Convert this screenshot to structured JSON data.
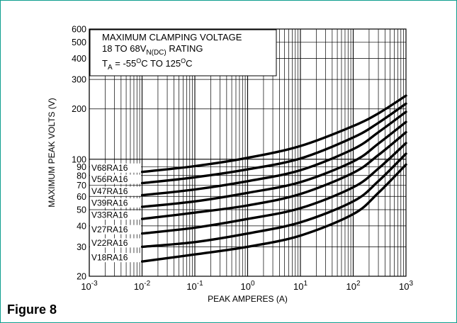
{
  "figure": {
    "caption": "Figure 8"
  },
  "colors": {
    "frame": "#0e9e8e",
    "curve": "#000000",
    "grid": "#000000",
    "background": "#ffffff"
  },
  "chart_data": {
    "type": "line",
    "title_lines": [
      "MAXIMUM CLAMPING VOLTAGE",
      "18 TO 68V",
      "N(DC)",
      " RATING",
      "T",
      "A",
      " = -55",
      "O",
      "C TO 125",
      "O",
      "C"
    ],
    "title": {
      "line1": "MAXIMUM CLAMPING VOLTAGE",
      "line2_main": "18 TO 68V",
      "line2_sub": "N(DC)",
      "line2_tail": " RATING",
      "line3_main": "T",
      "line3_sub": "A",
      "line3_mid": " = -55",
      "line3_sup1": "O",
      "line3_mid2": "C TO 125",
      "line3_sup2": "O",
      "line3_tail": "C"
    },
    "xlabel": "PEAK AMPERES (A)",
    "ylabel": "MAXIMUM PEAK VOLTS (V)",
    "xscale": "log",
    "yscale": "log",
    "xlim": [
      0.001,
      1000
    ],
    "ylim": [
      20,
      600
    ],
    "grid": true,
    "x_ticks": [
      {
        "base": "10",
        "exp": "-3"
      },
      {
        "base": "10",
        "exp": "-2"
      },
      {
        "base": "10",
        "exp": "-1"
      },
      {
        "base": "10",
        "exp": "0"
      },
      {
        "base": "10",
        "exp": "1"
      },
      {
        "base": "10",
        "exp": "2"
      },
      {
        "base": "10",
        "exp": "3"
      }
    ],
    "y_ticks": [
      "20",
      "30",
      "40",
      "50",
      "60",
      "70",
      "80",
      "90",
      "100",
      "200",
      "300",
      "400",
      "500",
      "600"
    ],
    "series": [
      {
        "name": "V68RA16",
        "x": [
          0.01,
          0.1,
          1,
          10,
          100,
          300,
          1000
        ],
        "y": [
          84,
          91,
          102,
          120,
          158,
          188,
          240
        ]
      },
      {
        "name": "V56RA16",
        "x": [
          0.01,
          0.1,
          1,
          10,
          100,
          300,
          1000
        ],
        "y": [
          72,
          78,
          87,
          101,
          135,
          165,
          215
        ]
      },
      {
        "name": "V47RA16",
        "x": [
          0.01,
          0.1,
          1,
          10,
          100,
          300,
          1000
        ],
        "y": [
          61,
          66,
          74,
          86,
          115,
          145,
          192
        ]
      },
      {
        "name": "V39RA16",
        "x": [
          0.01,
          0.1,
          1,
          10,
          100,
          300,
          1000
        ],
        "y": [
          52,
          56,
          63,
          73,
          97,
          124,
          167
        ]
      },
      {
        "name": "V33RA16",
        "x": [
          0.01,
          0.1,
          1,
          10,
          100,
          300,
          1000
        ],
        "y": [
          44,
          48,
          53,
          62,
          83,
          106,
          145
        ]
      },
      {
        "name": "V27RA16",
        "x": [
          0.01,
          0.1,
          1,
          10,
          100,
          300,
          1000
        ],
        "y": [
          36,
          39,
          44,
          51,
          68,
          88,
          125
        ]
      },
      {
        "name": "V22RA16",
        "x": [
          0.01,
          0.1,
          1,
          10,
          100,
          300,
          1000
        ],
        "y": [
          30,
          32,
          36,
          42,
          56,
          74,
          108
        ]
      },
      {
        "name": "V18RA16",
        "x": [
          0.01,
          0.1,
          1,
          10,
          100,
          300,
          1000
        ],
        "y": [
          24.5,
          27,
          30,
          35,
          47,
          63,
          93
        ]
      }
    ]
  }
}
